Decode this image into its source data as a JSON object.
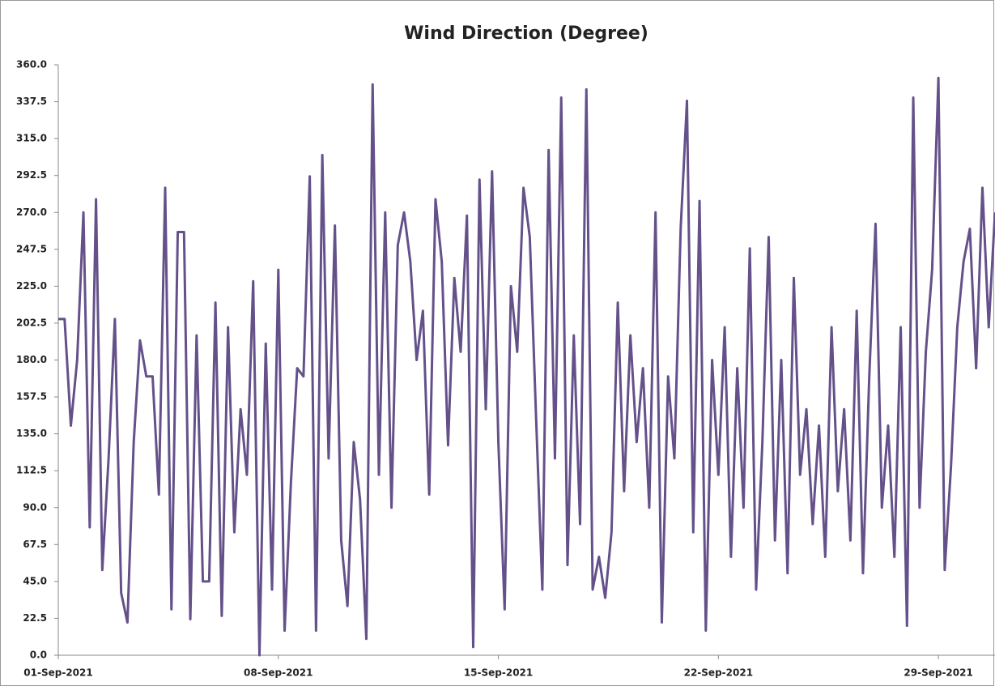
{
  "chart_data": {
    "type": "line",
    "title": "Wind Direction (Degree)",
    "color": "#64518a",
    "x": [
      0,
      0.2,
      0.4,
      0.6,
      0.8,
      1,
      1.2,
      1.4,
      1.6,
      1.8,
      2,
      2.2,
      2.4,
      2.6,
      2.8,
      3,
      3.2,
      3.4,
      3.6,
      3.8,
      4,
      4.2,
      4.4,
      4.6,
      4.8,
      5,
      5.2,
      5.4,
      5.6,
      5.8,
      6,
      6.2,
      6.4,
      6.6,
      6.8,
      7,
      7.2,
      7.4,
      7.6,
      7.8,
      8,
      8.2,
      8.4,
      8.6,
      8.8,
      9,
      9.2,
      9.4,
      9.6,
      9.8,
      10,
      10.2,
      10.4,
      10.6,
      10.8,
      11,
      11.2,
      11.4,
      11.6,
      11.8,
      12,
      12.2,
      12.4,
      12.6,
      12.8,
      13,
      13.2,
      13.4,
      13.6,
      13.8,
      14,
      14.2,
      14.4,
      14.6,
      14.8,
      15,
      15.2,
      15.4,
      15.6,
      15.8,
      16,
      16.2,
      16.4,
      16.6,
      16.8,
      17,
      17.2,
      17.4,
      17.6,
      17.8,
      18,
      18.2,
      18.4,
      18.6,
      18.8,
      19,
      19.2,
      19.4,
      19.6,
      19.8,
      20,
      20.2,
      20.4,
      20.6,
      20.8,
      21,
      21.2,
      21.4,
      21.6,
      21.8,
      22,
      22.2,
      22.4,
      22.6,
      22.8,
      23,
      23.2,
      23.4,
      23.6,
      23.8,
      24,
      24.2,
      24.4,
      24.6,
      24.8,
      25,
      25.2,
      25.4,
      25.6,
      25.8,
      26,
      26.2,
      26.4,
      26.6,
      26.8,
      27,
      27.2,
      27.4,
      27.6,
      27.8,
      28,
      28.2,
      28.4,
      28.6,
      28.8,
      29,
      29.2,
      29.4,
      29.6,
      29.8
    ],
    "values": [
      205,
      205,
      140,
      180,
      270,
      78,
      278,
      52,
      120,
      205,
      38,
      20,
      130,
      192,
      170,
      170,
      98,
      285,
      28,
      258,
      258,
      22,
      195,
      45,
      45,
      215,
      24,
      200,
      75,
      150,
      110,
      228,
      0,
      190,
      40,
      235,
      15,
      105,
      175,
      170,
      292,
      15,
      305,
      120,
      262,
      70,
      30,
      130,
      95,
      10,
      348,
      110,
      270,
      90,
      250,
      270,
      240,
      180,
      210,
      98,
      278,
      240,
      128,
      230,
      185,
      268,
      5,
      290,
      150,
      295,
      130,
      28,
      225,
      185,
      285,
      255,
      145,
      40,
      308,
      120,
      340,
      55,
      195,
      80,
      345,
      40,
      60,
      35,
      75,
      215,
      100,
      195,
      130,
      175,
      90,
      270,
      20,
      170,
      120,
      260,
      338,
      75,
      277,
      15,
      180,
      110,
      200,
      60,
      175,
      90,
      248,
      40,
      130,
      255,
      70,
      180,
      50,
      230,
      110,
      150,
      80,
      140,
      60,
      200,
      100,
      150,
      70,
      210,
      50,
      170,
      263,
      90,
      140,
      60,
      200,
      18,
      340,
      90,
      185,
      235,
      352,
      52,
      115,
      200,
      240,
      260,
      175,
      285,
      200,
      270
    ],
    "xlim": [
      0,
      29.8
    ],
    "xticks": [
      {
        "value": 0,
        "label": "01-Sep-2021"
      },
      {
        "value": 7,
        "label": "08-Sep-2021"
      },
      {
        "value": 14,
        "label": "15-Sep-2021"
      },
      {
        "value": 21,
        "label": "22-Sep-2021"
      },
      {
        "value": 28,
        "label": "29-Sep-2021"
      }
    ],
    "ylim": [
      0,
      360
    ],
    "yticks": [
      {
        "value": 0,
        "label": "0.0"
      },
      {
        "value": 22.5,
        "label": "22.5"
      },
      {
        "value": 45,
        "label": "45.0"
      },
      {
        "value": 67.5,
        "label": "67.5"
      },
      {
        "value": 90,
        "label": "90.0"
      },
      {
        "value": 112.5,
        "label": "112.5"
      },
      {
        "value": 135,
        "label": "135.0"
      },
      {
        "value": 157.5,
        "label": "157.5"
      },
      {
        "value": 180,
        "label": "180.0"
      },
      {
        "value": 202.5,
        "label": "202.5"
      },
      {
        "value": 225,
        "label": "225.0"
      },
      {
        "value": 247.5,
        "label": "247.5"
      },
      {
        "value": 270,
        "label": "270.0"
      },
      {
        "value": 292.5,
        "label": "292.5"
      },
      {
        "value": 315,
        "label": "315.0"
      },
      {
        "value": 337.5,
        "label": "337.5"
      },
      {
        "value": 360,
        "label": "360.0"
      }
    ]
  }
}
